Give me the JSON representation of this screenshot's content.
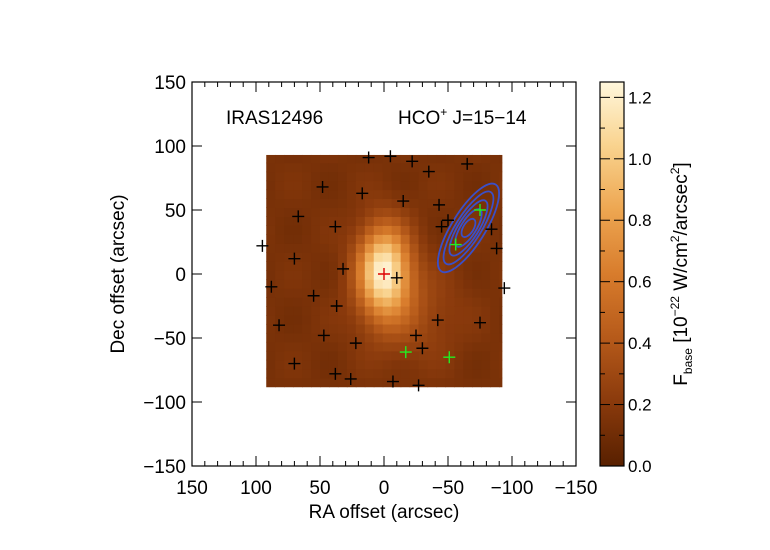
{
  "chart_data": {
    "type": "heatmap",
    "annotations": {
      "source": "IRAS12496",
      "line_prefix": "HCO",
      "line_sup": "+",
      "line_suffix": " J=15−14"
    },
    "xlabel": "RA offset (arcsec)",
    "ylabel": "Dec offset (arcsec)",
    "xlim": [
      150,
      -150
    ],
    "ylim": [
      -150,
      150
    ],
    "x_ticks": [
      150,
      100,
      50,
      0,
      -50,
      -100,
      -150
    ],
    "x_tick_labels": [
      "150",
      "100",
      "50",
      "0",
      "−50",
      "−100",
      "−150"
    ],
    "y_ticks": [
      150,
      100,
      50,
      0,
      -50,
      -100,
      -150
    ],
    "y_tick_labels": [
      "150",
      "100",
      "50",
      "0",
      "−50",
      "−100",
      "−150"
    ],
    "map_extent": {
      "ra": [
        92,
        -92
      ],
      "dec": [
        -88,
        93
      ]
    },
    "peak": {
      "ra": 0,
      "dec": 3,
      "value": 1.25
    },
    "colorbar": {
      "label_main": "F",
      "label_sub": "base",
      "label_units_pre": " [10",
      "label_exp": "−22",
      "label_units_mid": " W/cm",
      "label_exp2": "2",
      "label_units_mid2": "/arcsec",
      "label_exp3": "2",
      "label_units_end": "]",
      "range": [
        0.0,
        1.25
      ],
      "ticks": [
        0.0,
        0.2,
        0.4,
        0.6,
        0.8,
        1.0,
        1.2
      ],
      "tick_labels": [
        "0.0",
        "0.2",
        "0.4",
        "0.6",
        "0.8",
        "1.0",
        "1.2"
      ],
      "colormap": [
        "#582000",
        "#8a3a0c",
        "#b65a1a",
        "#d87c2c",
        "#eda651",
        "#f9d38e",
        "#fff7dc"
      ]
    },
    "pointings_black": [
      [
        -5,
        92
      ],
      [
        -22,
        88
      ],
      [
        -35,
        80
      ],
      [
        12,
        91
      ],
      [
        -65,
        86
      ],
      [
        48,
        68
      ],
      [
        17,
        63
      ],
      [
        -15,
        57
      ],
      [
        -43,
        54
      ],
      [
        67,
        45
      ],
      [
        38,
        37
      ],
      [
        -45,
        37
      ],
      [
        -50,
        42
      ],
      [
        95,
        22
      ],
      [
        -88,
        20
      ],
      [
        70,
        12
      ],
      [
        -84,
        35
      ],
      [
        32,
        4
      ],
      [
        -10,
        -3
      ],
      [
        88,
        -10
      ],
      [
        -94,
        -11
      ],
      [
        55,
        -17
      ],
      [
        37,
        -25
      ],
      [
        82,
        -40
      ],
      [
        -42,
        -36
      ],
      [
        -75,
        -38
      ],
      [
        47,
        -48
      ],
      [
        -25,
        -48
      ],
      [
        22,
        -54
      ],
      [
        -30,
        -58
      ],
      [
        70,
        -70
      ],
      [
        38,
        -78
      ],
      [
        -7,
        -84
      ],
      [
        -27,
        -87
      ],
      [
        26,
        -82
      ]
    ],
    "pointings_green": [
      [
        -56,
        23
      ],
      [
        -75,
        50
      ],
      [
        -17,
        -61
      ],
      [
        -51,
        -65
      ]
    ],
    "pointings_red": [
      [
        0,
        0
      ]
    ],
    "contours": {
      "color": "#3a4fc8",
      "center": {
        "ra": -66,
        "dec": 36
      },
      "levels": [
        {
          "a": 40,
          "b": 13,
          "angle_deg": 58
        },
        {
          "a": 33,
          "b": 10,
          "angle_deg": 58
        },
        {
          "a": 25,
          "b": 8,
          "angle_deg": 58
        },
        {
          "a": 17,
          "b": 6,
          "angle_deg": 58
        },
        {
          "a": 8,
          "b": 4,
          "angle_deg": 58
        }
      ]
    }
  }
}
